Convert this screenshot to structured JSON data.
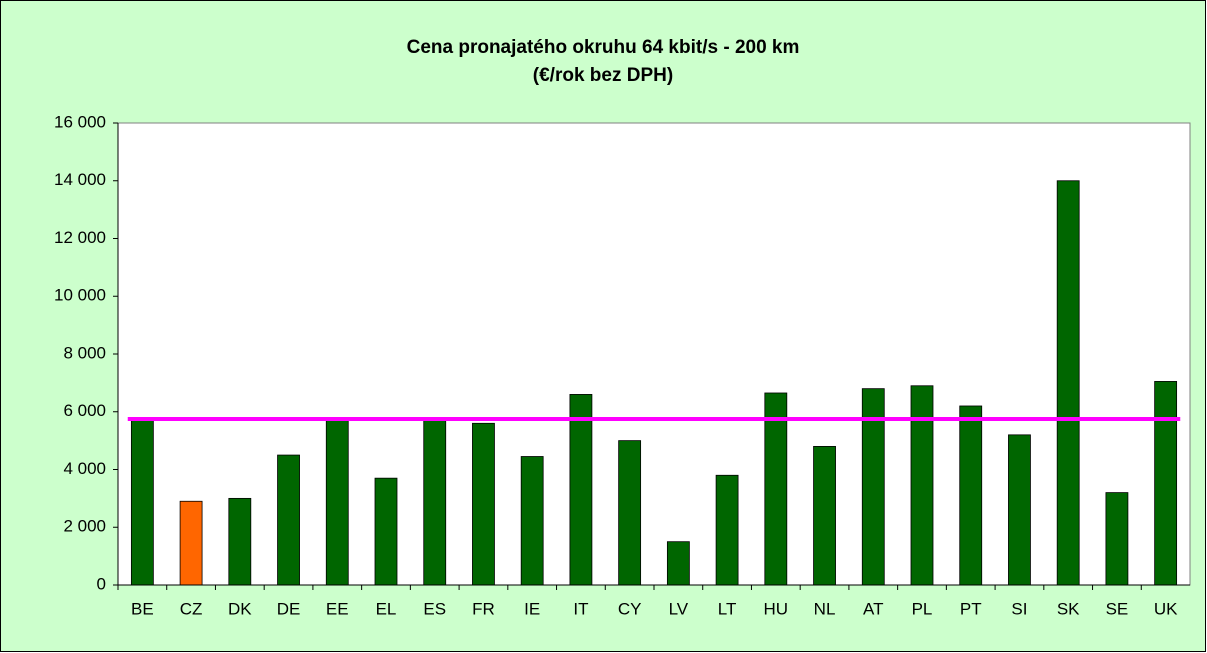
{
  "chart_data": {
    "type": "bar",
    "title": [
      "Cena pronajatého okruhu 64 kbit/s - 200 km",
      "(€/rok bez DPH)"
    ],
    "categories": [
      "BE",
      "CZ",
      "DK",
      "DE",
      "EE",
      "EL",
      "ES",
      "FR",
      "IE",
      "IT",
      "CY",
      "LV",
      "LT",
      "HU",
      "NL",
      "AT",
      "PL",
      "PT",
      "SI",
      "SK",
      "SE",
      "UK"
    ],
    "values": [
      5750,
      2900,
      3000,
      4500,
      5750,
      3700,
      5750,
      5600,
      4450,
      6600,
      5000,
      1500,
      3800,
      6650,
      4800,
      6800,
      6900,
      6200,
      5200,
      14000,
      3200,
      7050
    ],
    "colors": [
      "#006600",
      "#ff6600",
      "#006600",
      "#006600",
      "#006600",
      "#006600",
      "#006600",
      "#006600",
      "#006600",
      "#006600",
      "#006600",
      "#006600",
      "#006600",
      "#006600",
      "#006600",
      "#006600",
      "#006600",
      "#006600",
      "#006600",
      "#006600",
      "#006600",
      "#006600"
    ],
    "reference_line": {
      "value": 5750,
      "color": "#ff00ff"
    },
    "ylim": [
      0,
      16000
    ],
    "yticks": [
      0,
      {
        "value": 2000,
        "label": "2 000"
      },
      {
        "value": 4000,
        "label": "4 000"
      },
      {
        "value": 6000,
        "label": "6 000"
      },
      {
        "value": 8000,
        "label": "8 000"
      },
      {
        "value": 10000,
        "label": "10 000"
      },
      {
        "value": 12000,
        "label": "12 000"
      },
      {
        "value": 14000,
        "label": "14 000"
      },
      {
        "value": 16000,
        "label": "16 000"
      }
    ],
    "grid": false
  }
}
